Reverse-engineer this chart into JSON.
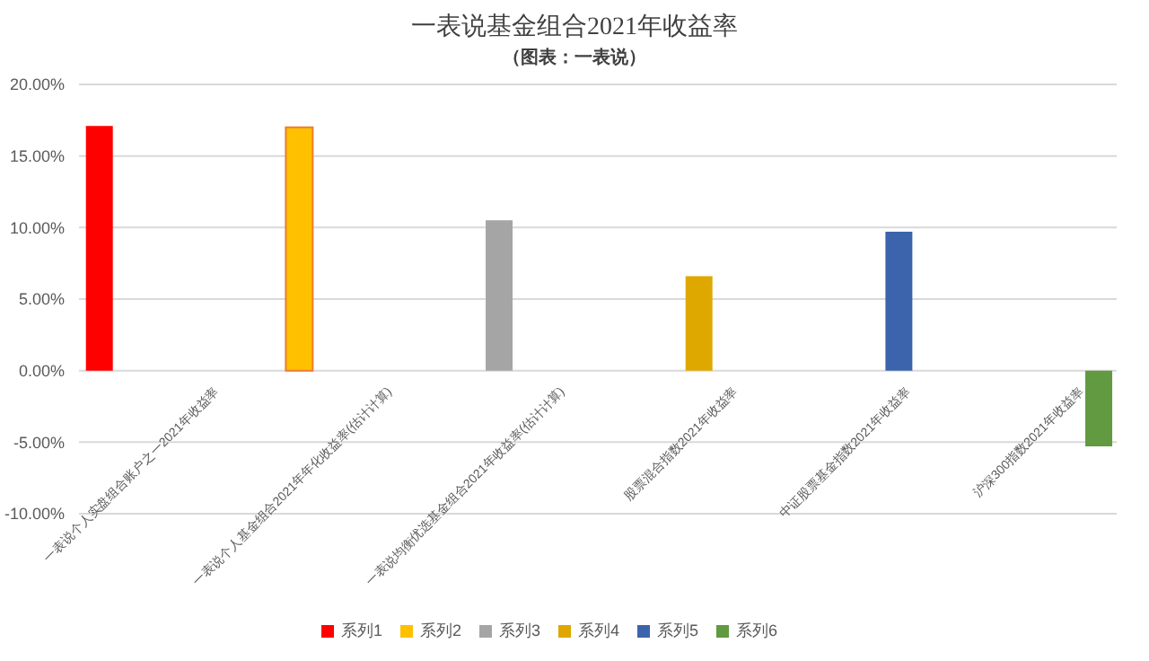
{
  "chart_data": {
    "type": "bar",
    "title": "一表说基金组合2021年收益率",
    "subtitle": "（图表：一表说）",
    "categories": [
      "一表说个人实盘组合账户之一2021年收益率",
      "一表说个人基金组合2021年年化收益率(估计计算)",
      "一表说均衡优选基金组合2021年收益率(估计计算)",
      "股票混合指数2021年收益率",
      "中证股票基金指数2021年收益率",
      "沪深300指数2021年收益率"
    ],
    "series": [
      {
        "name": "系列1",
        "color": "#ff0000",
        "values": [
          17.1,
          null,
          null,
          null,
          null,
          null
        ]
      },
      {
        "name": "系列2",
        "color": "#ffc000",
        "values": [
          null,
          17.0,
          null,
          null,
          null,
          null
        ]
      },
      {
        "name": "系列3",
        "color": "#a5a5a5",
        "values": [
          null,
          null,
          10.5,
          null,
          null,
          null
        ]
      },
      {
        "name": "系列4",
        "color": "#dea800",
        "values": [
          null,
          null,
          null,
          6.6,
          null,
          null
        ]
      },
      {
        "name": "系列5",
        "color": "#3c64ac",
        "values": [
          null,
          null,
          null,
          null,
          9.7,
          null
        ]
      },
      {
        "name": "系列6",
        "color": "#619a40",
        "values": [
          null,
          null,
          null,
          null,
          null,
          -5.3
        ]
      }
    ],
    "ylim": [
      -10,
      20
    ],
    "yticks": [
      {
        "value": -10,
        "label": "-10.00%"
      },
      {
        "value": -5,
        "label": "-5.00%"
      },
      {
        "value": 0,
        "label": "0.00%"
      },
      {
        "value": 5,
        "label": "5.00%"
      },
      {
        "value": 10,
        "label": "10.00%"
      },
      {
        "value": 15,
        "label": "15.00%"
      },
      {
        "value": 20,
        "label": "20.00%"
      }
    ],
    "grid": "y",
    "legend": "bottom"
  }
}
